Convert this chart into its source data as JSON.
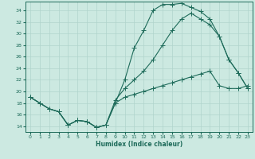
{
  "xlabel": "Humidex (Indice chaleur)",
  "xlim": [
    -0.5,
    23.5
  ],
  "ylim": [
    13,
    35.5
  ],
  "yticks": [
    14,
    16,
    18,
    20,
    22,
    24,
    26,
    28,
    30,
    32,
    34
  ],
  "xticks": [
    0,
    1,
    2,
    3,
    4,
    5,
    6,
    7,
    8,
    9,
    10,
    11,
    12,
    13,
    14,
    15,
    16,
    17,
    18,
    19,
    20,
    21,
    22,
    23
  ],
  "bg_color": "#cce9e1",
  "line_color": "#1e6b5a",
  "grid_color": "#b0d4cc",
  "line1_x": [
    0,
    1,
    2,
    3,
    4,
    5,
    6,
    7,
    8,
    9,
    10,
    11,
    12,
    13,
    14,
    15,
    16,
    17,
    18,
    19,
    20,
    21,
    22,
    23
  ],
  "line1_y": [
    19.0,
    18.0,
    17.0,
    16.5,
    14.2,
    15.0,
    14.8,
    13.8,
    14.2,
    18.0,
    19.0,
    19.5,
    20.0,
    20.5,
    21.0,
    21.5,
    22.0,
    22.5,
    23.0,
    23.5,
    21.0,
    20.5,
    20.5,
    21.0
  ],
  "line2_x": [
    0,
    1,
    2,
    3,
    4,
    5,
    6,
    7,
    8,
    9,
    10,
    11,
    12,
    13,
    14,
    15,
    16,
    17,
    18,
    19,
    20,
    21,
    22,
    23
  ],
  "line2_y": [
    19.0,
    18.0,
    17.0,
    16.5,
    14.2,
    15.0,
    14.8,
    13.8,
    14.2,
    18.0,
    22.0,
    27.5,
    30.5,
    34.0,
    35.0,
    35.0,
    35.2,
    34.5,
    33.8,
    32.5,
    29.5,
    25.5,
    23.2,
    20.5
  ],
  "line3_x": [
    0,
    1,
    2,
    3,
    4,
    5,
    6,
    7,
    8,
    9,
    10,
    11,
    12,
    13,
    14,
    15,
    16,
    17,
    18,
    19,
    20,
    21,
    22,
    23
  ],
  "line3_y": [
    19.0,
    18.0,
    17.0,
    16.5,
    14.2,
    15.0,
    14.8,
    13.8,
    14.2,
    18.5,
    20.5,
    22.0,
    23.5,
    25.5,
    28.0,
    30.5,
    32.5,
    33.5,
    32.5,
    31.5,
    29.5,
    25.5,
    23.2,
    20.5
  ]
}
